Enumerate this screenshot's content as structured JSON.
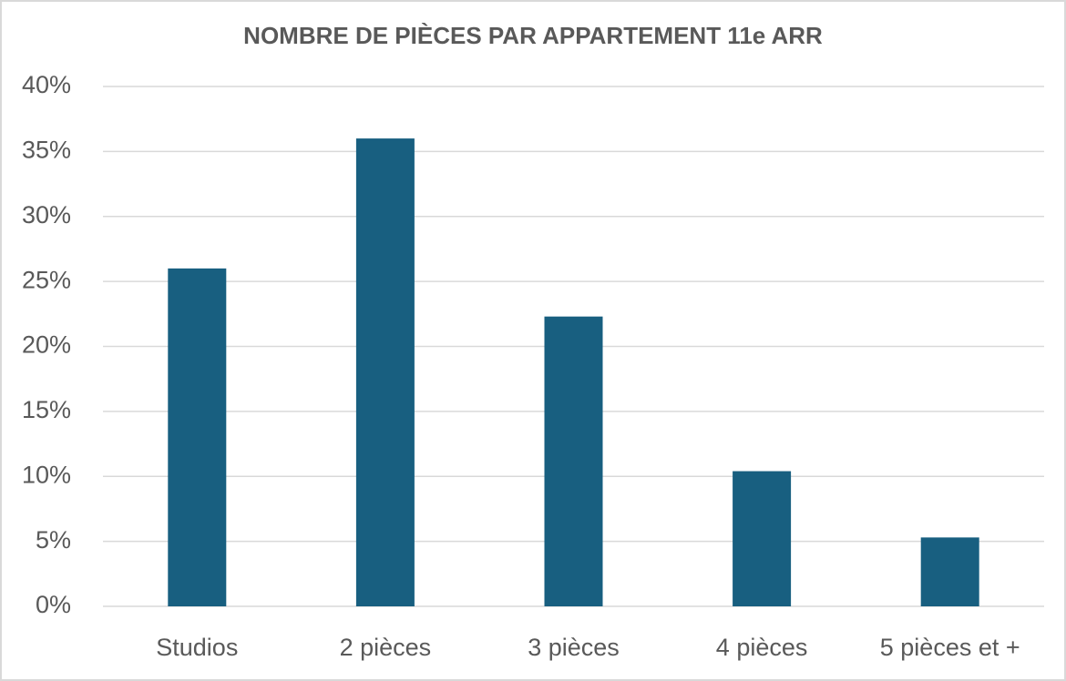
{
  "chart_data": {
    "type": "bar",
    "title": "NOMBRE DE PIÈCES PAR APPARTEMENT 11e ARR",
    "categories": [
      "Studios",
      "2 pièces",
      "3 pièces",
      "4 pièces",
      "5 pièces et +"
    ],
    "values": [
      26,
      36,
      22.3,
      10.4,
      5.3
    ],
    "color": "#185f80",
    "ylim": [
      0,
      40
    ],
    "yticks": [
      {
        "value": 0,
        "label": "0%"
      },
      {
        "value": 5,
        "label": "5%"
      },
      {
        "value": 10,
        "label": "10%"
      },
      {
        "value": 15,
        "label": "15%"
      },
      {
        "value": 20,
        "label": "20%"
      },
      {
        "value": 25,
        "label": "25%"
      },
      {
        "value": 30,
        "label": "30%"
      },
      {
        "value": 35,
        "label": "35%"
      },
      {
        "value": 40,
        "label": "40%"
      }
    ],
    "grid": true
  }
}
